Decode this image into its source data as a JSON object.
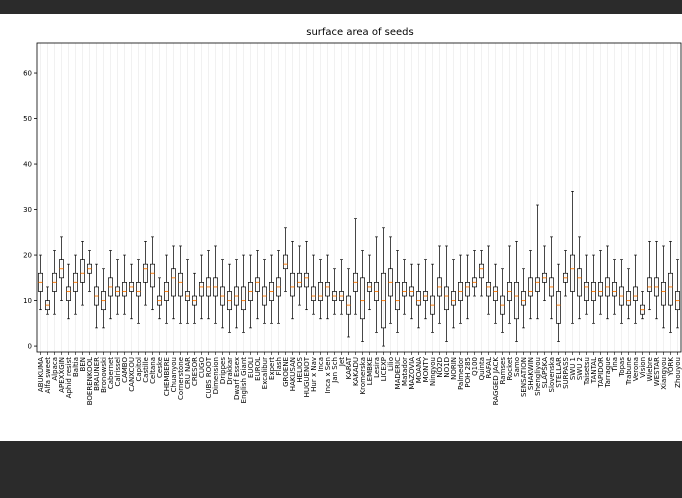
{
  "chart_data": {
    "type": "box",
    "title": "surface area of seeds",
    "categories": [
      "ABUKUMA",
      "Alfa sweet",
      "Alpaca",
      "APEXXGIN",
      "Aphid resist",
      "Baltia",
      "BEN",
      "BOERENKOOL",
      "BRAUNER",
      "Bronowski",
      "Cabernet",
      "Calrissel",
      "CAMBO",
      "CANXCOU",
      "Capitol",
      "Castille",
      "Celtana",
      "Ceske",
      "CHEMBERE",
      "Chuanyou",
      "Cornerstone",
      "CRU NAR",
      "CRESOR",
      "CUGO",
      "CUBS ROOT",
      "Dimension",
      "Drippes",
      "Drakkar",
      "Dwarf Essex",
      "English Giant",
      "EUOLI",
      "EUROL",
      "Excalibur",
      "Expert",
      "Flash",
      "GROENE",
      "HAKUSAN",
      "HELIOS",
      "HUGUENOT",
      "Hur x Nav",
      "Inca",
      "Inca x Sen",
      "Jan Sch",
      "Jet",
      "KARAT",
      "KAKADU",
      "Kromerska",
      "LEMBKE",
      "Lesira",
      "LICEXP",
      "Lilio",
      "MADERIC",
      "Matador",
      "MAZOVIA",
      "MOANA",
      "MONTY",
      "Ningyou",
      "NO2D",
      "NO1D",
      "NORIN",
      "Palmedor",
      "POH 285",
      "Q100",
      "Quinta",
      "RAFAL",
      "RAGGED JACK",
      "Ramses",
      "Rocket",
      "Samo",
      "SENSATION",
      "SHAKWIN",
      "Shengliyou",
      "SLAPSKA",
      "Slovenska",
      "STELLAR",
      "SURPASS",
      "SWU 1",
      "SWU 2",
      "Taisetsu",
      "TANTAL",
      "TAPIDOR",
      "Tarrague",
      "Tina",
      "Topas",
      "Trabune",
      "Verona",
      "Vision",
      "Wiebre",
      "WESTAR",
      "Xiangyou",
      "YORK",
      "Zhouyou"
    ],
    "whislo": [
      8,
      7,
      7,
      10,
      6,
      7,
      9,
      12,
      4,
      4,
      6,
      7,
      7,
      6,
      5,
      9,
      8,
      6,
      5,
      6,
      5,
      5,
      5,
      6,
      6,
      5,
      4,
      3,
      4,
      3,
      4,
      6,
      5,
      5,
      5,
      12,
      6,
      9,
      8,
      7,
      6,
      6,
      7,
      7,
      2,
      7,
      1,
      8,
      3,
      0,
      5,
      3,
      7,
      6,
      4,
      6,
      3,
      5,
      1,
      4,
      5,
      6,
      11,
      11,
      7,
      5,
      3,
      5,
      1,
      4,
      6,
      6,
      10,
      6,
      1,
      11,
      5,
      6,
      7,
      5,
      7,
      6,
      7,
      5,
      6,
      5,
      6,
      8,
      6,
      4,
      3,
      4
    ],
    "q1": [
      12,
      8,
      12,
      15,
      10,
      12,
      14,
      16,
      9,
      8,
      11,
      11,
      11,
      12,
      11,
      14,
      13,
      9,
      10,
      11,
      11,
      10,
      9,
      11,
      11,
      11,
      9,
      8,
      9,
      8,
      10,
      12,
      9,
      10,
      11,
      17,
      11,
      13,
      13,
      10,
      10,
      11,
      10,
      10,
      7,
      12,
      6,
      12,
      10,
      4,
      11,
      8,
      11,
      11,
      9,
      10,
      7,
      11,
      8,
      9,
      10,
      11,
      13,
      15,
      11,
      10,
      7,
      10,
      6,
      9,
      11,
      12,
      14,
      11,
      5,
      14,
      12,
      11,
      10,
      10,
      11,
      11,
      11,
      9,
      9,
      10,
      7,
      12,
      11,
      9,
      9,
      8
    ],
    "median": [
      14,
      9,
      14,
      17,
      12,
      14,
      16,
      17,
      11,
      10,
      13,
      12,
      12,
      13,
      12,
      17,
      16,
      10,
      12,
      15,
      14,
      11,
      10,
      13,
      13,
      13,
      11,
      10,
      11,
      10,
      12,
      14,
      11,
      12,
      13,
      18,
      13,
      14,
      15,
      11,
      11,
      13,
      11,
      11,
      9,
      14,
      10,
      13,
      12,
      10,
      14,
      10,
      12,
      12,
      10,
      11,
      9,
      13,
      11,
      10,
      12,
      13,
      14,
      17,
      13,
      12,
      9,
      12,
      11,
      10,
      12,
      14,
      15,
      13,
      9,
      15,
      17,
      15,
      13,
      12,
      12,
      13,
      12,
      11,
      10,
      11,
      8,
      13,
      13,
      12,
      13,
      10
    ],
    "q3": [
      16,
      10,
      16,
      19,
      13,
      16,
      19,
      18,
      13,
      12,
      15,
      13,
      14,
      14,
      14,
      18,
      18,
      11,
      14,
      17,
      16,
      12,
      11,
      14,
      15,
      15,
      13,
      12,
      13,
      13,
      14,
      15,
      13,
      14,
      15,
      20,
      16,
      16,
      16,
      13,
      14,
      14,
      12,
      12,
      11,
      16,
      15,
      14,
      14,
      16,
      17,
      14,
      14,
      13,
      12,
      12,
      11,
      15,
      13,
      12,
      14,
      14,
      15,
      18,
      14,
      13,
      11,
      14,
      14,
      12,
      15,
      15,
      16,
      15,
      12,
      16,
      20,
      17,
      14,
      14,
      14,
      15,
      14,
      13,
      12,
      13,
      9,
      15,
      15,
      14,
      16,
      12
    ],
    "whishi": [
      20,
      13,
      21,
      24,
      18,
      20,
      23,
      21,
      18,
      17,
      21,
      19,
      20,
      18,
      19,
      23,
      24,
      15,
      20,
      22,
      22,
      19,
      16,
      20,
      21,
      22,
      19,
      18,
      19,
      20,
      20,
      21,
      19,
      20,
      21,
      26,
      23,
      22,
      23,
      20,
      19,
      20,
      17,
      19,
      17,
      28,
      21,
      20,
      24,
      26,
      24,
      21,
      19,
      18,
      18,
      19,
      18,
      22,
      22,
      19,
      20,
      20,
      21,
      21,
      22,
      18,
      17,
      22,
      23,
      17,
      21,
      31,
      22,
      24,
      18,
      21,
      34,
      24,
      20,
      20,
      21,
      22,
      19,
      19,
      17,
      20,
      12,
      23,
      23,
      22,
      23,
      19
    ],
    "ylim": [
      -1.3,
      66.6
    ],
    "yticks": [
      0,
      10,
      20,
      30,
      40,
      50,
      60
    ],
    "grid": true,
    "box_color": "#000000",
    "median_color": "#ff7f0e"
  }
}
